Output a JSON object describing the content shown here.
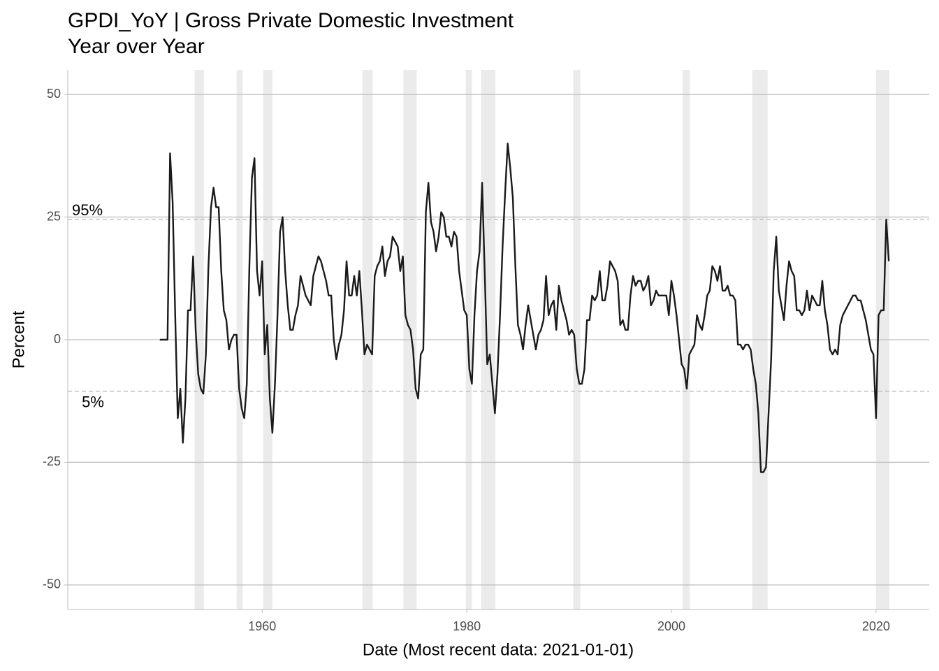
{
  "chart_data": {
    "type": "line",
    "title": "GPDI_YoY | Gross Private Domestic Investment",
    "subtitle": "Year over Year",
    "x_label": "Date (Most recent data: 2021-01-01)",
    "y_label": "Percent",
    "xlim": [
      1941.0,
      2025.2
    ],
    "ylim": [
      -55,
      55
    ],
    "xticks": [
      1960,
      1980,
      2000,
      2020
    ],
    "yticks": [
      -50,
      -25,
      0,
      25,
      50
    ],
    "grid": true,
    "color": "#1a1a1a",
    "recession_color": "#ebebeb",
    "recessions": [
      [
        1953.4,
        1954.3
      ],
      [
        1957.5,
        1958.1
      ],
      [
        1960.1,
        1961.0
      ],
      [
        1969.8,
        1970.8
      ],
      [
        1973.8,
        1975.1
      ],
      [
        1979.9,
        1980.5
      ],
      [
        1981.4,
        1982.8
      ],
      [
        1990.4,
        1991.1
      ],
      [
        2001.1,
        2001.8
      ],
      [
        2007.9,
        2009.4
      ],
      [
        2020.0,
        2021.3
      ]
    ],
    "reference_lines": [
      {
        "label": "95%",
        "value": 24.5
      },
      {
        "label": "5%",
        "value": -10.5
      }
    ],
    "x": [
      1950,
      1950.25,
      1950.5,
      1950.75,
      1951,
      1951.25,
      1951.5,
      1951.75,
      1952,
      1952.25,
      1952.5,
      1952.75,
      1953,
      1953.25,
      1953.5,
      1953.75,
      1954,
      1954.25,
      1954.5,
      1954.75,
      1955,
      1955.25,
      1955.5,
      1955.75,
      1956,
      1956.25,
      1956.5,
      1956.75,
      1957,
      1957.25,
      1957.5,
      1957.75,
      1958,
      1958.25,
      1958.5,
      1958.75,
      1959,
      1959.25,
      1959.5,
      1959.75,
      1960,
      1960.25,
      1960.5,
      1960.75,
      1961,
      1961.25,
      1961.5,
      1961.75,
      1962,
      1962.25,
      1962.5,
      1962.75,
      1963,
      1963.25,
      1963.5,
      1963.75,
      1964,
      1964.25,
      1964.5,
      1964.75,
      1965,
      1965.25,
      1965.5,
      1965.75,
      1966,
      1966.25,
      1966.5,
      1966.75,
      1967,
      1967.25,
      1967.5,
      1967.75,
      1968,
      1968.25,
      1968.5,
      1968.75,
      1969,
      1969.25,
      1969.5,
      1969.75,
      1970,
      1970.25,
      1970.5,
      1970.75,
      1971,
      1971.25,
      1971.5,
      1971.75,
      1972,
      1972.25,
      1972.5,
      1972.75,
      1973,
      1973.25,
      1973.5,
      1973.75,
      1974,
      1974.25,
      1974.5,
      1974.75,
      1975,
      1975.25,
      1975.5,
      1975.75,
      1976,
      1976.25,
      1976.5,
      1976.75,
      1977,
      1977.25,
      1977.5,
      1977.75,
      1978,
      1978.25,
      1978.5,
      1978.75,
      1979,
      1979.25,
      1979.5,
      1979.75,
      1980,
      1980.25,
      1980.5,
      1980.75,
      1981,
      1981.25,
      1981.5,
      1981.75,
      1982,
      1982.25,
      1982.5,
      1982.75,
      1983,
      1983.25,
      1983.5,
      1983.75,
      1984,
      1984.25,
      1984.5,
      1984.75,
      1985,
      1985.25,
      1985.5,
      1985.75,
      1986,
      1986.25,
      1986.5,
      1986.75,
      1987,
      1987.25,
      1987.5,
      1987.75,
      1988,
      1988.25,
      1988.5,
      1988.75,
      1989,
      1989.25,
      1989.5,
      1989.75,
      1990,
      1990.25,
      1990.5,
      1990.75,
      1991,
      1991.25,
      1991.5,
      1991.75,
      1992,
      1992.25,
      1992.5,
      1992.75,
      1993,
      1993.25,
      1993.5,
      1993.75,
      1994,
      1994.25,
      1994.5,
      1994.75,
      1995,
      1995.25,
      1995.5,
      1995.75,
      1996,
      1996.25,
      1996.5,
      1996.75,
      1997,
      1997.25,
      1997.5,
      1997.75,
      1998,
      1998.25,
      1998.5,
      1998.75,
      1999,
      1999.25,
      1999.5,
      1999.75,
      2000,
      2000.25,
      2000.5,
      2000.75,
      2001,
      2001.25,
      2001.5,
      2001.75,
      2002,
      2002.25,
      2002.5,
      2002.75,
      2003,
      2003.25,
      2003.5,
      2003.75,
      2004,
      2004.25,
      2004.5,
      2004.75,
      2005,
      2005.25,
      2005.5,
      2005.75,
      2006,
      2006.25,
      2006.5,
      2006.75,
      2007,
      2007.25,
      2007.5,
      2007.75,
      2008,
      2008.25,
      2008.5,
      2008.75,
      2009,
      2009.25,
      2009.5,
      2009.75,
      2010,
      2010.25,
      2010.5,
      2010.75,
      2011,
      2011.25,
      2011.5,
      2011.75,
      2012,
      2012.25,
      2012.5,
      2012.75,
      2013,
      2013.25,
      2013.5,
      2013.75,
      2014,
      2014.25,
      2014.5,
      2014.75,
      2015,
      2015.25,
      2015.5,
      2015.75,
      2016,
      2016.25,
      2016.5,
      2016.75,
      2017,
      2017.25,
      2017.5,
      2017.75,
      2018,
      2018.25,
      2018.5,
      2018.75,
      2019,
      2019.25,
      2019.5,
      2019.75,
      2020,
      2020.25,
      2020.5,
      2020.75,
      2021,
      2021.25
    ],
    "values": [
      0,
      0,
      0,
      0,
      38,
      28,
      5,
      -16,
      -10,
      -21,
      -12,
      6,
      6,
      17,
      2,
      -7,
      -10,
      -11,
      -3,
      15,
      27,
      31,
      27,
      27,
      14,
      6,
      4,
      -2,
      0,
      1,
      1,
      -10,
      -14,
      -16,
      -9,
      15,
      33,
      37,
      14,
      9,
      16,
      -3,
      3,
      -12,
      -19,
      -9,
      5,
      22,
      25,
      14,
      7,
      2,
      2,
      5,
      7,
      13,
      11,
      9,
      8,
      7,
      13,
      15,
      17,
      16,
      14,
      12,
      9,
      9,
      0,
      -4,
      -1,
      1,
      6,
      16,
      9,
      9,
      13,
      9,
      14,
      6,
      -3,
      -1,
      -2,
      -3,
      13,
      15,
      16,
      19,
      13,
      16,
      17,
      21,
      20,
      19,
      14,
      17,
      5,
      3,
      2,
      -2,
      -10,
      -12,
      -3,
      -2,
      26,
      32,
      24,
      22,
      18,
      21,
      26,
      25,
      21,
      21,
      19,
      22,
      21,
      14,
      10,
      6,
      5,
      -6,
      -9,
      5,
      14,
      18,
      32,
      14,
      -5,
      -3,
      -9,
      -15,
      -7,
      5,
      19,
      30,
      40,
      35,
      29,
      15,
      3,
      1,
      -2,
      3,
      7,
      4,
      1,
      -2,
      1,
      2,
      4,
      13,
      5,
      7,
      8,
      2,
      11,
      8,
      6,
      4,
      1,
      2,
      1,
      -6,
      -9,
      -9,
      -6,
      4,
      4,
      9,
      8,
      9,
      14,
      8,
      8,
      11,
      16,
      15,
      14,
      12,
      3,
      4,
      2,
      2,
      9,
      13,
      11,
      12,
      12,
      10,
      11,
      13,
      7,
      8,
      10,
      9,
      9,
      9,
      9,
      5,
      12,
      9,
      5,
      0,
      -5,
      -6,
      -10,
      -3,
      -2,
      -1,
      5,
      3,
      2,
      5,
      9,
      10,
      15,
      14,
      12,
      15,
      10,
      10,
      11,
      9,
      9,
      8,
      -1,
      -1,
      -2,
      -1,
      -1,
      -2,
      -6,
      -9,
      -15,
      -27,
      -27,
      -26,
      -15,
      -4,
      14,
      21,
      10,
      7,
      4,
      11,
      16,
      14,
      13,
      6,
      6,
      5,
      6,
      10,
      6,
      9,
      8,
      7,
      7,
      12,
      6,
      3,
      -2,
      -3,
      -2,
      -3,
      3,
      5,
      6,
      7,
      8,
      9,
      9,
      8,
      8,
      6,
      4,
      1,
      -2,
      -3,
      -16,
      5,
      6,
      6,
      24.5,
      16
    ]
  }
}
